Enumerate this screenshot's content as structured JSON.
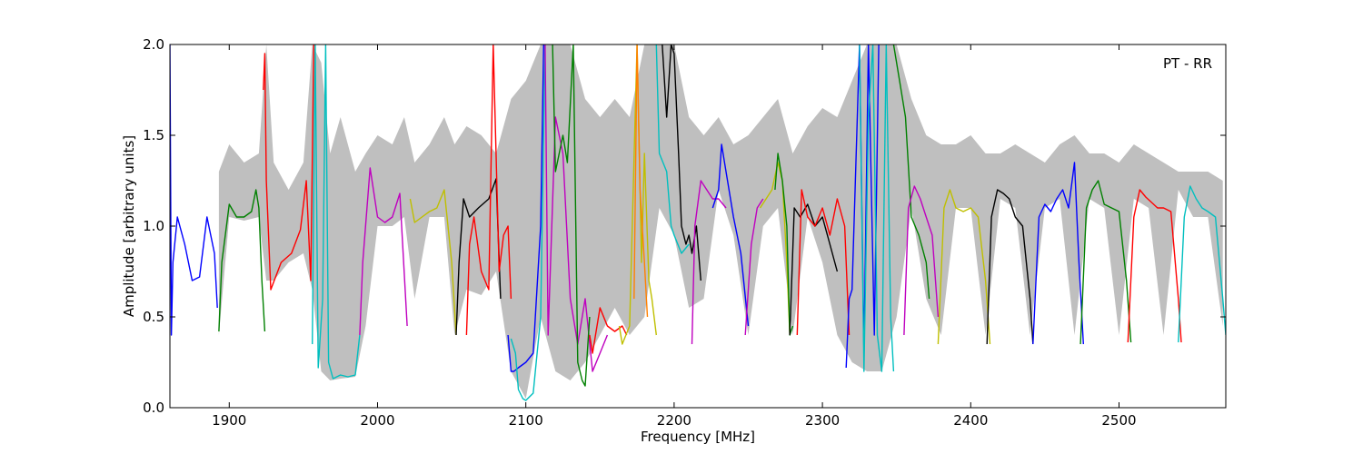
{
  "chart_data": {
    "type": "line",
    "title": "",
    "xlabel": "Frequency [MHz]",
    "ylabel": "Amplitude [arbitrary units]",
    "annotation": "PT - RR",
    "xlim": [
      1860,
      2572
    ],
    "ylim": [
      0.0,
      2.0
    ],
    "xticks": [
      {
        "value": 1900,
        "label": "1900"
      },
      {
        "value": 2000,
        "label": "2000"
      },
      {
        "value": 2100,
        "label": "2100"
      },
      {
        "value": 2200,
        "label": "2200"
      },
      {
        "value": 2300,
        "label": "2300"
      },
      {
        "value": 2400,
        "label": "2400"
      },
      {
        "value": 2500,
        "label": "2500"
      }
    ],
    "yticks": [
      {
        "value": 0.0,
        "label": "0.0"
      },
      {
        "value": 0.5,
        "label": "0.5"
      },
      {
        "value": 1.0,
        "label": "1.0"
      },
      {
        "value": 1.5,
        "label": "1.5"
      },
      {
        "value": 2.0,
        "label": "2.0"
      }
    ],
    "grid": false,
    "envelope": {
      "color": "#bfbfbf",
      "x": [
        1893,
        1900,
        1910,
        1920,
        1925,
        1930,
        1940,
        1950,
        1956,
        1962,
        1968,
        1975,
        1985,
        1992,
        2000,
        2010,
        2018,
        2025,
        2035,
        2045,
        2052,
        2060,
        2070,
        2080,
        2090,
        2100,
        2110,
        2120,
        2130,
        2140,
        2150,
        2160,
        2170,
        2180,
        2190,
        2200,
        2210,
        2220,
        2230,
        2240,
        2250,
        2260,
        2270,
        2280,
        2290,
        2300,
        2310,
        2320,
        2330,
        2340,
        2350,
        2360,
        2370,
        2380,
        2390,
        2400,
        2410,
        2420,
        2430,
        2440,
        2450,
        2460,
        2470,
        2480,
        2490,
        2500,
        2510,
        2520,
        2530,
        2540,
        2550,
        2560,
        2570
      ],
      "upper": [
        1.3,
        1.45,
        1.35,
        1.4,
        2.0,
        1.35,
        1.2,
        1.35,
        2.0,
        1.9,
        1.4,
        1.6,
        1.3,
        1.4,
        1.5,
        1.45,
        1.6,
        1.35,
        1.45,
        1.6,
        1.45,
        1.55,
        1.5,
        1.4,
        1.7,
        1.8,
        2.0,
        2.0,
        2.0,
        1.7,
        1.6,
        1.7,
        1.6,
        2.0,
        2.0,
        2.0,
        1.6,
        1.5,
        1.6,
        1.45,
        1.5,
        1.6,
        1.7,
        1.4,
        1.55,
        1.65,
        1.6,
        1.8,
        2.0,
        2.0,
        2.0,
        1.7,
        1.5,
        1.45,
        1.45,
        1.5,
        1.4,
        1.4,
        1.45,
        1.4,
        1.35,
        1.45,
        1.5,
        1.4,
        1.4,
        1.35,
        1.45,
        1.4,
        1.35,
        1.3,
        1.3,
        1.3,
        1.25
      ],
      "lower": [
        0.4,
        1.05,
        1.03,
        1.05,
        0.7,
        0.7,
        0.8,
        0.85,
        0.65,
        0.2,
        0.15,
        0.16,
        0.17,
        0.45,
        1.0,
        1.0,
        1.05,
        0.6,
        1.05,
        1.05,
        0.4,
        0.65,
        0.62,
        0.75,
        0.2,
        0.05,
        0.5,
        0.2,
        0.15,
        0.25,
        0.4,
        0.55,
        0.4,
        0.5,
        1.1,
        0.95,
        0.55,
        0.6,
        1.2,
        0.95,
        0.4,
        1.0,
        1.1,
        0.4,
        1.05,
        0.8,
        0.4,
        0.25,
        0.2,
        0.2,
        0.5,
        1.1,
        0.6,
        0.4,
        1.1,
        1.1,
        0.4,
        1.15,
        1.1,
        0.4,
        1.1,
        1.15,
        0.4,
        1.15,
        1.1,
        0.4,
        1.15,
        1.1,
        0.4,
        1.2,
        1.05,
        1.05,
        0.45
      ]
    },
    "series": [
      {
        "color": "#0000ff",
        "x": [
          1860,
          1861,
          1862,
          1865,
          1870,
          1875,
          1880,
          1885,
          1890,
          1892
        ],
        "y": [
          2.0,
          0.4,
          0.8,
          1.05,
          0.9,
          0.7,
          0.72,
          1.05,
          0.85,
          0.55
        ]
      },
      {
        "color": "#008000",
        "x": [
          1893,
          1895,
          1900,
          1905,
          1910,
          1915,
          1918,
          1920,
          1922,
          1924
        ],
        "y": [
          0.42,
          0.8,
          1.12,
          1.05,
          1.05,
          1.08,
          1.2,
          1.1,
          0.7,
          0.42
        ]
      },
      {
        "color": "#ff0000",
        "x": [
          1923,
          1924,
          1925,
          1928,
          1935,
          1942,
          1948,
          1952,
          1955,
          1957
        ],
        "y": [
          1.75,
          1.95,
          1.25,
          0.65,
          0.8,
          0.85,
          0.98,
          1.25,
          0.7,
          2.0
        ]
      },
      {
        "color": "#00bfbf",
        "x": [
          1956,
          1958,
          1960,
          1963,
          1965,
          1967,
          1970,
          1975,
          1980,
          1985,
          1988
        ],
        "y": [
          0.35,
          2.0,
          0.22,
          0.6,
          2.0,
          0.25,
          0.16,
          0.18,
          0.17,
          0.18,
          0.4
        ]
      },
      {
        "color": "#bf00bf",
        "x": [
          1988,
          1990,
          1995,
          2000,
          2005,
          2010,
          2015,
          2020
        ],
        "y": [
          0.4,
          0.8,
          1.32,
          1.05,
          1.02,
          1.05,
          1.18,
          0.45
        ]
      },
      {
        "color": "#bfbf00",
        "x": [
          2022,
          2025,
          2030,
          2035,
          2040,
          2045,
          2050,
          2053
        ],
        "y": [
          1.15,
          1.02,
          1.05,
          1.08,
          1.1,
          1.2,
          0.8,
          0.4
        ]
      },
      {
        "color": "#000000",
        "x": [
          2053,
          2055,
          2058,
          2062,
          2068,
          2075,
          2080,
          2083
        ],
        "y": [
          0.4,
          0.8,
          1.15,
          1.05,
          1.1,
          1.15,
          1.26,
          0.6
        ]
      },
      {
        "color": "#ff0000",
        "x": [
          2060,
          2062,
          2065,
          2070,
          2075,
          2078,
          2082,
          2085,
          2088,
          2090
        ],
        "y": [
          0.4,
          0.9,
          1.05,
          0.75,
          0.65,
          2.0,
          0.75,
          0.95,
          1.0,
          0.6
        ]
      },
      {
        "color": "#0000ff",
        "x": [
          2088,
          2090,
          2092,
          2095,
          2100,
          2105,
          2110,
          2112
        ],
        "y": [
          0.4,
          0.2,
          0.2,
          0.22,
          0.25,
          0.3,
          1.0,
          2.0
        ]
      },
      {
        "color": "#00bfbf",
        "x": [
          2090,
          2093,
          2095,
          2098,
          2100,
          2105,
          2110,
          2113
        ],
        "y": [
          0.38,
          0.3,
          0.1,
          0.05,
          0.04,
          0.08,
          0.5,
          2.0
        ]
      },
      {
        "color": "#bf00bf",
        "x": [
          2113,
          2115,
          2120,
          2125,
          2130,
          2135,
          2140,
          2145,
          2150,
          2155
        ],
        "y": [
          2.0,
          0.4,
          1.6,
          1.4,
          0.6,
          0.35,
          0.6,
          0.2,
          0.3,
          0.4
        ]
      },
      {
        "color": "#008000",
        "x": [
          2118,
          2120,
          2125,
          2128,
          2132,
          2135,
          2138,
          2140,
          2143
        ],
        "y": [
          2.0,
          1.3,
          1.5,
          1.35,
          2.0,
          0.25,
          0.15,
          0.12,
          0.5
        ]
      },
      {
        "color": "#ff0000",
        "x": [
          2143,
          2145,
          2150,
          2155,
          2160,
          2165,
          2168
        ],
        "y": [
          0.4,
          0.3,
          0.55,
          0.45,
          0.42,
          0.45,
          0.4
        ]
      },
      {
        "color": "#bfbf00",
        "x": [
          2163,
          2165,
          2170,
          2175,
          2178,
          2180,
          2183,
          2185,
          2188
        ],
        "y": [
          0.45,
          0.35,
          0.45,
          2.0,
          0.8,
          1.4,
          0.7,
          0.6,
          0.4
        ]
      },
      {
        "color": "#ff8000",
        "x": [
          2173,
          2175,
          2177,
          2180,
          2182
        ],
        "y": [
          0.6,
          2.0,
          1.2,
          0.8,
          0.5
        ]
      },
      {
        "color": "#00bfbf",
        "x": [
          2188,
          2190,
          2195,
          2198,
          2200,
          2205,
          2210
        ],
        "y": [
          2.0,
          1.4,
          1.3,
          1.0,
          0.95,
          0.85,
          0.9
        ]
      },
      {
        "color": "#000000",
        "x": [
          2192,
          2195,
          2198,
          2200,
          2203,
          2205,
          2208,
          2210,
          2212,
          2215,
          2218
        ],
        "y": [
          2.0,
          1.6,
          2.0,
          1.95,
          1.4,
          1.0,
          0.9,
          0.95,
          0.85,
          1.0,
          0.7
        ]
      },
      {
        "color": "#bf00bf",
        "x": [
          2212,
          2214,
          2218,
          2222,
          2226,
          2230,
          2235
        ],
        "y": [
          0.35,
          1.0,
          1.25,
          1.2,
          1.15,
          1.15,
          1.1
        ]
      },
      {
        "color": "#0000ff",
        "x": [
          2226,
          2230,
          2232,
          2235,
          2240,
          2245,
          2250
        ],
        "y": [
          1.1,
          1.2,
          1.45,
          1.3,
          1.05,
          0.85,
          0.45
        ]
      },
      {
        "color": "#bf00bf",
        "x": [
          2248,
          2252,
          2256,
          2260
        ],
        "y": [
          0.4,
          0.9,
          1.1,
          1.15
        ]
      },
      {
        "color": "#bfbf00",
        "x": [
          2258,
          2262,
          2266,
          2270,
          2273,
          2276,
          2278
        ],
        "y": [
          1.1,
          1.15,
          1.2,
          1.35,
          1.25,
          0.8,
          0.4
        ]
      },
      {
        "color": "#008000",
        "x": [
          2268,
          2270,
          2273,
          2276,
          2278,
          2280
        ],
        "y": [
          1.2,
          1.4,
          1.25,
          1.0,
          0.4,
          0.45
        ]
      },
      {
        "color": "#000000",
        "x": [
          2278,
          2281,
          2285,
          2290,
          2295,
          2300,
          2305,
          2310
        ],
        "y": [
          0.4,
          1.1,
          1.05,
          1.12,
          1.0,
          1.05,
          0.9,
          0.75
        ]
      },
      {
        "color": "#ff0000",
        "x": [
          2283,
          2286,
          2290,
          2295,
          2300,
          2305,
          2310,
          2315,
          2318
        ],
        "y": [
          0.4,
          1.2,
          1.05,
          1.0,
          1.1,
          0.95,
          1.15,
          1.0,
          0.4
        ]
      },
      {
        "color": "#0000ff",
        "x": [
          2316,
          2318,
          2320,
          2325,
          2328,
          2331,
          2335,
          2338
        ],
        "y": [
          0.22,
          0.6,
          0.65,
          2.0,
          0.3,
          2.0,
          0.4,
          2.0
        ]
      },
      {
        "color": "#00bfbf",
        "x": [
          2325,
          2328,
          2331,
          2334,
          2337,
          2340,
          2343,
          2346,
          2348
        ],
        "y": [
          2.0,
          0.2,
          1.6,
          2.0,
          0.4,
          0.2,
          2.0,
          0.5,
          0.2
        ]
      },
      {
        "color": "#008000",
        "x": [
          2348,
          2352,
          2356,
          2360,
          2365,
          2370,
          2372
        ],
        "y": [
          2.0,
          1.8,
          1.6,
          1.05,
          0.95,
          0.8,
          0.6
        ]
      },
      {
        "color": "#bf00bf",
        "x": [
          2355,
          2358,
          2362,
          2366,
          2370,
          2374,
          2378
        ],
        "y": [
          0.4,
          1.1,
          1.22,
          1.15,
          1.05,
          0.95,
          0.5
        ]
      },
      {
        "color": "#bfbf00",
        "x": [
          2378,
          2382,
          2386,
          2390,
          2395,
          2400,
          2405,
          2410,
          2413
        ],
        "y": [
          0.35,
          1.1,
          1.2,
          1.1,
          1.08,
          1.1,
          1.05,
          0.7,
          0.35
        ]
      },
      {
        "color": "#000000",
        "x": [
          2411,
          2414,
          2418,
          2422,
          2426,
          2430,
          2435,
          2440,
          2442
        ],
        "y": [
          0.35,
          1.05,
          1.2,
          1.18,
          1.15,
          1.05,
          1.0,
          0.6,
          0.35
        ]
      },
      {
        "color": "#0000ff",
        "x": [
          2442,
          2446,
          2450,
          2454,
          2458,
          2462,
          2466,
          2470,
          2473,
          2476
        ],
        "y": [
          0.35,
          1.05,
          1.12,
          1.08,
          1.15,
          1.2,
          1.1,
          1.35,
          0.8,
          0.35
        ]
      },
      {
        "color": "#008000",
        "x": [
          2474,
          2478,
          2482,
          2486,
          2490,
          2495,
          2500,
          2505,
          2508
        ],
        "y": [
          0.35,
          1.1,
          1.2,
          1.25,
          1.12,
          1.1,
          1.08,
          0.7,
          0.36
        ]
      },
      {
        "color": "#ff0000",
        "x": [
          2506,
          2510,
          2514,
          2518,
          2522,
          2526,
          2530,
          2535,
          2540,
          2542
        ],
        "y": [
          0.36,
          1.05,
          1.2,
          1.16,
          1.13,
          1.1,
          1.1,
          1.08,
          0.6,
          0.36
        ]
      },
      {
        "color": "#00bfbf",
        "x": [
          2540,
          2544,
          2548,
          2552,
          2556,
          2560,
          2565,
          2570,
          2572
        ],
        "y": [
          0.36,
          1.05,
          1.22,
          1.15,
          1.1,
          1.08,
          1.05,
          0.6,
          0.4
        ]
      }
    ]
  }
}
